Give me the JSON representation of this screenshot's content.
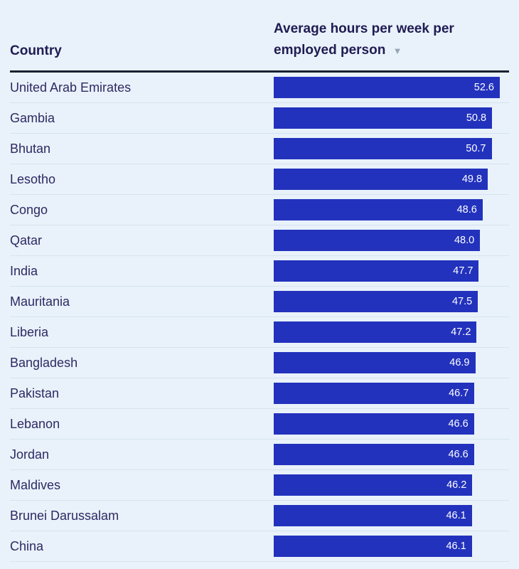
{
  "header": {
    "country_column": "Country",
    "metric_column": "Average hours per week per employed person",
    "sort_indicator": "▼"
  },
  "chart_data": {
    "type": "bar",
    "orientation": "horizontal",
    "title": "Average hours per week per employed person",
    "xlabel": "",
    "ylabel": "Country",
    "xlim": [
      0,
      52.6
    ],
    "grid": false,
    "legend": "none",
    "value_labels": "inside-bar-right, one decimal, white",
    "bar_color": "#2232bd",
    "value_label_color": "#ffffff",
    "categories": [
      "United Arab Emirates",
      "Gambia",
      "Bhutan",
      "Lesotho",
      "Congo",
      "Qatar",
      "India",
      "Mauritania",
      "Liberia",
      "Bangladesh",
      "Pakistan",
      "Lebanon",
      "Jordan",
      "Maldives",
      "Brunei Darussalam",
      "China"
    ],
    "values": [
      52.6,
      50.8,
      50.7,
      49.8,
      48.6,
      48.0,
      47.7,
      47.5,
      47.2,
      46.9,
      46.7,
      46.6,
      46.6,
      46.2,
      46.1,
      46.1
    ]
  },
  "colors": {
    "background": "#e9f2fa",
    "bar": "#2232bd",
    "header_text": "#201b53",
    "row_text": "#2e2963",
    "separator": "#d5e2ee",
    "header_rule": "#1b2131",
    "sort_icon": "#97a6b4"
  }
}
